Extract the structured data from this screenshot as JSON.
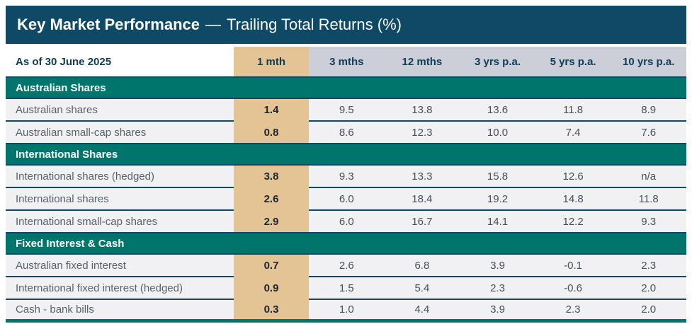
{
  "title": {
    "main": "Key Market Performance",
    "separator": "—",
    "subtitle": "Trailing Total Returns (%)"
  },
  "header": {
    "as_of": "As of 30 June 2025",
    "columns": [
      "1 mth",
      "3 mths",
      "12 mths",
      "3 yrs p.a.",
      "5 yrs p.a.",
      "10 yrs p.a."
    ]
  },
  "sections": [
    {
      "title": "Australian Shares",
      "rows": [
        {
          "label": "Australian shares",
          "values": [
            "1.4",
            "9.5",
            "13.8",
            "13.6",
            "11.8",
            "8.9"
          ]
        },
        {
          "label": "Australian small-cap shares",
          "values": [
            "0.8",
            "8.6",
            "12.3",
            "10.0",
            "7.4",
            "7.6"
          ]
        }
      ]
    },
    {
      "title": "International Shares",
      "rows": [
        {
          "label": "International shares (hedged)",
          "values": [
            "3.8",
            "9.3",
            "13.3",
            "15.8",
            "12.6",
            "n/a"
          ]
        },
        {
          "label": "International shares",
          "values": [
            "2.6",
            "6.0",
            "18.4",
            "19.2",
            "14.8",
            "11.8"
          ]
        },
        {
          "label": "International small-cap shares",
          "values": [
            "2.9",
            "6.0",
            "16.7",
            "14.1",
            "12.2",
            "9.3"
          ]
        }
      ]
    },
    {
      "title": "Fixed Interest & Cash",
      "rows": [
        {
          "label": "Australian fixed interest",
          "values": [
            "0.7",
            "2.6",
            "6.8",
            "3.9",
            "-0.1",
            "2.3"
          ]
        },
        {
          "label": "International fixed interest (hedged)",
          "values": [
            "0.9",
            "1.5",
            "5.4",
            "2.3",
            "-0.6",
            "2.0"
          ]
        },
        {
          "label": "Cash - bank bills",
          "values": [
            "0.3",
            "1.0",
            "4.4",
            "3.9",
            "2.3",
            "2.0"
          ]
        }
      ]
    }
  ],
  "colors": {
    "navy": "#0e4a66",
    "teal": "#00756b",
    "tan": "#e4c494",
    "header-gray": "#cccfd8",
    "row-gray": "#f1f1f4",
    "header-text": "#0e3d57",
    "label-text": "#57626c",
    "value-text": "#44505a"
  }
}
